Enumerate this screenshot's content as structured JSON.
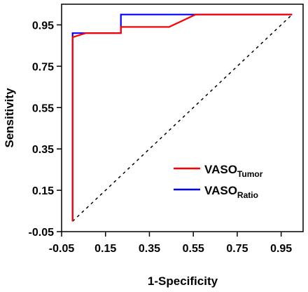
{
  "chart_data": {
    "type": "line",
    "title": "",
    "xlabel": "1-Specificity",
    "ylabel": "Sensitivity",
    "xlim": [
      -0.05,
      1.05
    ],
    "ylim": [
      -0.05,
      1.05
    ],
    "xticks": [
      "-0.05",
      "0.15",
      "0.35",
      "0.55",
      "0.75",
      "0.95"
    ],
    "yticks": [
      "-0.05",
      "0.15",
      "0.35",
      "0.55",
      "0.75",
      "0.95"
    ],
    "grid": false,
    "legend_position": "bottom-right",
    "series": [
      {
        "name_main": "VASO",
        "name_sub": "Tumor",
        "color": "#ff0000",
        "x": [
          0.0,
          0.0,
          0.0,
          0.06,
          0.11,
          0.22,
          0.22,
          0.44,
          0.56,
          1.0
        ],
        "y": [
          0.0,
          0.83,
          0.89,
          0.91,
          0.91,
          0.91,
          0.94,
          0.94,
          1.0,
          1.0
        ]
      },
      {
        "name_main": "VASO",
        "name_sub": "Ratio",
        "color": "#0000ff",
        "x": [
          0.0,
          0.0,
          0.11,
          0.22,
          0.22,
          1.0
        ],
        "y": [
          0.0,
          0.91,
          0.91,
          0.91,
          1.0,
          1.0
        ]
      }
    ],
    "reference_line": {
      "x": [
        0.0,
        1.0
      ],
      "y": [
        0.0,
        1.0
      ],
      "style": "dashed",
      "color": "#000000"
    }
  }
}
